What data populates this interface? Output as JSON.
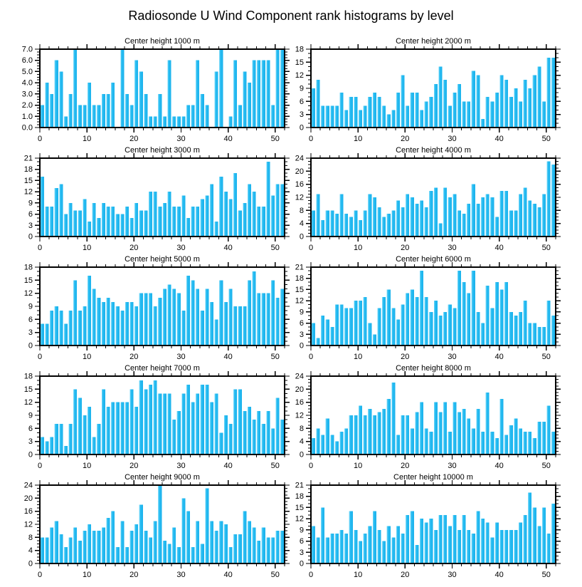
{
  "page_title": "Radiosonde U Wind Component rank histograms by level",
  "colors": {
    "bar": "#29BDF2",
    "bar_highlight": "#8FE0FA",
    "bar_dark": "#1AB2EC",
    "axis": "#000000",
    "background": "#FFFFFF"
  },
  "chart_data": [
    {
      "type": "bar",
      "title": "Center height 1000 m",
      "xlim": [
        0,
        52
      ],
      "ylim": [
        0,
        7
      ],
      "xtick_vals": [
        0,
        10,
        20,
        30,
        40,
        50
      ],
      "x_minor_step": 2,
      "ytick_vals": [
        0,
        1,
        2,
        3,
        4,
        5,
        6,
        7
      ],
      "ytick_labels": [
        "0.0",
        "1.0",
        "2.0",
        "3.0",
        "4.0",
        "5.0",
        "6.0",
        "7.0"
      ],
      "y_minor_step": 0.25,
      "grid": false,
      "legend": "none",
      "values": [
        2,
        4,
        3,
        6,
        5,
        1,
        3,
        7,
        2,
        2,
        4,
        2,
        2,
        3,
        3,
        4,
        0,
        7,
        3,
        2,
        6,
        5,
        3,
        1,
        1,
        3,
        1,
        6,
        1,
        1,
        1,
        2,
        2,
        6,
        3,
        2,
        0,
        5,
        7,
        0,
        1,
        6,
        2,
        5,
        4,
        6,
        6,
        6,
        6,
        2,
        7,
        7
      ]
    },
    {
      "type": "bar",
      "title": "Center height 2000 m",
      "xlim": [
        0,
        52
      ],
      "ylim": [
        0,
        18
      ],
      "xtick_vals": [
        0,
        10,
        20,
        30,
        40,
        50
      ],
      "x_minor_step": 2,
      "ytick_vals": [
        0,
        3,
        6,
        9,
        12,
        15,
        18
      ],
      "ytick_labels": [
        "0",
        "3",
        "6",
        "9",
        "12",
        "15",
        "18"
      ],
      "y_minor_step": 1,
      "grid": false,
      "legend": "none",
      "values": [
        9,
        11,
        5,
        5,
        5,
        5,
        8,
        4,
        7,
        7,
        4,
        5,
        7,
        8,
        7,
        5,
        3,
        4,
        8,
        12,
        5,
        8,
        8,
        4,
        6,
        7,
        10,
        14,
        11,
        5,
        8,
        10,
        6,
        6,
        13,
        12,
        2,
        7,
        6,
        8,
        12,
        11,
        7,
        9,
        6,
        11,
        9,
        12,
        14,
        6,
        16,
        16
      ]
    },
    {
      "type": "bar",
      "title": "Center height 3000 m",
      "xlim": [
        0,
        52
      ],
      "ylim": [
        0,
        21
      ],
      "xtick_vals": [
        0,
        10,
        20,
        30,
        40,
        50
      ],
      "x_minor_step": 2,
      "ytick_vals": [
        0,
        3,
        6,
        9,
        12,
        15,
        18,
        21
      ],
      "ytick_labels": [
        "0",
        "3",
        "6",
        "9",
        "12",
        "15",
        "18",
        "21"
      ],
      "y_minor_step": 1,
      "grid": false,
      "legend": "none",
      "values": [
        16,
        8,
        8,
        13,
        14,
        6,
        9,
        7,
        7,
        10,
        4,
        9,
        5,
        9,
        8,
        8,
        6,
        6,
        8,
        5,
        9,
        7,
        7,
        12,
        12,
        8,
        9,
        12,
        8,
        8,
        11,
        5,
        8,
        8,
        10,
        11,
        14,
        4,
        16,
        12,
        10,
        17,
        7,
        9,
        14,
        12,
        8,
        8,
        20,
        11,
        14,
        14
      ]
    },
    {
      "type": "bar",
      "title": "Center height 4000 m",
      "xlim": [
        0,
        52
      ],
      "ylim": [
        0,
        24
      ],
      "xtick_vals": [
        0,
        10,
        20,
        30,
        40,
        50
      ],
      "x_minor_step": 2,
      "ytick_vals": [
        0,
        4,
        8,
        12,
        16,
        20,
        24
      ],
      "ytick_labels": [
        "0",
        "4",
        "8",
        "12",
        "16",
        "20",
        "24"
      ],
      "y_minor_step": 1,
      "grid": false,
      "legend": "none",
      "values": [
        8,
        13,
        5,
        8,
        8,
        7,
        13,
        7,
        6,
        8,
        5,
        8,
        13,
        12,
        9,
        6,
        7,
        8,
        11,
        9,
        13,
        12,
        10,
        11,
        9,
        14,
        15,
        4,
        15,
        12,
        13,
        8,
        7,
        10,
        16,
        10,
        12,
        13,
        12,
        6,
        14,
        14,
        8,
        8,
        13,
        15,
        11,
        10,
        9,
        13,
        23,
        22
      ]
    },
    {
      "type": "bar",
      "title": "Center height 5000 m",
      "xlim": [
        0,
        52
      ],
      "ylim": [
        0,
        18
      ],
      "xtick_vals": [
        0,
        10,
        20,
        30,
        40,
        50
      ],
      "x_minor_step": 2,
      "ytick_vals": [
        0,
        3,
        6,
        9,
        12,
        15,
        18
      ],
      "ytick_labels": [
        "0",
        "3",
        "6",
        "9",
        "12",
        "15",
        "18"
      ],
      "y_minor_step": 1,
      "grid": false,
      "legend": "none",
      "values": [
        5,
        5,
        8,
        9,
        8,
        5,
        8,
        15,
        8,
        9,
        16,
        13,
        11,
        10,
        11,
        10,
        9,
        8,
        10,
        10,
        9,
        12,
        12,
        12,
        9,
        11,
        13,
        14,
        13,
        12,
        8,
        16,
        15,
        13,
        8,
        13,
        10,
        6,
        15,
        10,
        13,
        9,
        9,
        9,
        15,
        17,
        12,
        12,
        12,
        15,
        11,
        13
      ]
    },
    {
      "type": "bar",
      "title": "Center height 6000 m",
      "xlim": [
        0,
        52
      ],
      "ylim": [
        0,
        21
      ],
      "xtick_vals": [
        0,
        10,
        20,
        30,
        40,
        50
      ],
      "x_minor_step": 2,
      "ytick_vals": [
        0,
        3,
        6,
        9,
        12,
        15,
        18,
        21
      ],
      "ytick_labels": [
        "0",
        "3",
        "6",
        "9",
        "12",
        "15",
        "18",
        "21"
      ],
      "y_minor_step": 1,
      "grid": false,
      "legend": "none",
      "values": [
        6,
        2,
        8,
        7,
        5,
        11,
        11,
        10,
        10,
        12,
        12,
        13,
        6,
        3,
        10,
        13,
        15,
        10,
        7,
        11,
        14,
        15,
        13,
        20,
        13,
        9,
        12,
        8,
        9,
        11,
        10,
        20,
        17,
        14,
        20,
        9,
        6,
        16,
        10,
        17,
        15,
        17,
        9,
        8,
        9,
        12,
        6,
        6,
        5,
        5,
        12,
        8
      ]
    },
    {
      "type": "bar",
      "title": "Center height 7000 m",
      "xlim": [
        0,
        52
      ],
      "ylim": [
        0,
        18
      ],
      "xtick_vals": [
        0,
        10,
        20,
        30,
        40,
        50
      ],
      "x_minor_step": 2,
      "ytick_vals": [
        0,
        3,
        6,
        9,
        12,
        15,
        18
      ],
      "ytick_labels": [
        "0",
        "3",
        "6",
        "9",
        "12",
        "15",
        "18"
      ],
      "y_minor_step": 1,
      "grid": false,
      "legend": "none",
      "values": [
        4,
        3,
        4,
        7,
        7,
        2,
        7,
        15,
        13,
        9,
        11,
        4,
        7,
        15,
        11,
        12,
        12,
        12,
        12,
        15,
        11,
        17,
        15,
        16,
        17,
        14,
        14,
        14,
        8,
        10,
        14,
        16,
        12,
        14,
        16,
        16,
        12,
        14,
        5,
        9,
        7,
        15,
        15,
        10,
        11,
        8,
        10,
        7,
        10,
        6,
        13,
        8
      ]
    },
    {
      "type": "bar",
      "title": "Center height 8000 m",
      "xlim": [
        0,
        52
      ],
      "ylim": [
        0,
        24
      ],
      "xtick_vals": [
        0,
        10,
        20,
        30,
        40,
        50
      ],
      "x_minor_step": 2,
      "ytick_vals": [
        0,
        4,
        8,
        12,
        16,
        20,
        24
      ],
      "ytick_labels": [
        "0",
        "4",
        "8",
        "12",
        "16",
        "20",
        "24"
      ],
      "y_minor_step": 1,
      "grid": false,
      "legend": "none",
      "values": [
        5,
        8,
        6,
        11,
        6,
        4,
        7,
        8,
        12,
        12,
        15,
        12,
        14,
        12,
        13,
        14,
        17,
        22,
        6,
        12,
        12,
        8,
        13,
        16,
        8,
        7,
        16,
        13,
        16,
        7,
        16,
        13,
        14,
        11,
        8,
        14,
        7,
        19,
        7,
        5,
        17,
        6,
        9,
        11,
        8,
        7,
        7,
        5,
        10,
        10,
        15,
        7
      ]
    },
    {
      "type": "bar",
      "title": "Center height 9000 m",
      "xlim": [
        0,
        52
      ],
      "ylim": [
        0,
        24
      ],
      "xtick_vals": [
        0,
        10,
        20,
        30,
        40,
        50
      ],
      "x_minor_step": 2,
      "ytick_vals": [
        0,
        4,
        8,
        12,
        16,
        20,
        24
      ],
      "ytick_labels": [
        "0",
        "4",
        "8",
        "12",
        "16",
        "20",
        "24"
      ],
      "y_minor_step": 1,
      "grid": false,
      "legend": "none",
      "values": [
        8,
        8,
        11,
        13,
        9,
        5,
        8,
        11,
        7,
        10,
        12,
        10,
        10,
        11,
        14,
        16,
        5,
        13,
        5,
        10,
        12,
        18,
        10,
        8,
        13,
        24,
        7,
        6,
        11,
        5,
        20,
        16,
        5,
        13,
        6,
        23,
        13,
        10,
        13,
        12,
        5,
        9,
        9,
        16,
        13,
        11,
        7,
        11,
        8,
        8,
        10,
        10
      ]
    },
    {
      "type": "bar",
      "title": "Center height 10000 m",
      "xlim": [
        0,
        52
      ],
      "ylim": [
        0,
        21
      ],
      "xtick_vals": [
        0,
        10,
        20,
        30,
        40,
        50
      ],
      "x_minor_step": 2,
      "ytick_vals": [
        0,
        3,
        6,
        9,
        12,
        15,
        18,
        21
      ],
      "ytick_labels": [
        "0",
        "3",
        "6",
        "9",
        "12",
        "15",
        "18",
        "21"
      ],
      "y_minor_step": 1,
      "grid": false,
      "legend": "none",
      "values": [
        10,
        7,
        15,
        7,
        8,
        8,
        9,
        8,
        14,
        9,
        6,
        8,
        10,
        14,
        9,
        6,
        10,
        7,
        10,
        8,
        13,
        14,
        5,
        12,
        11,
        12,
        9,
        13,
        13,
        10,
        13,
        9,
        13,
        9,
        8,
        14,
        12,
        11,
        7,
        11,
        9,
        9,
        9,
        9,
        11,
        13,
        19,
        15,
        10,
        15,
        8,
        16
      ]
    }
  ]
}
